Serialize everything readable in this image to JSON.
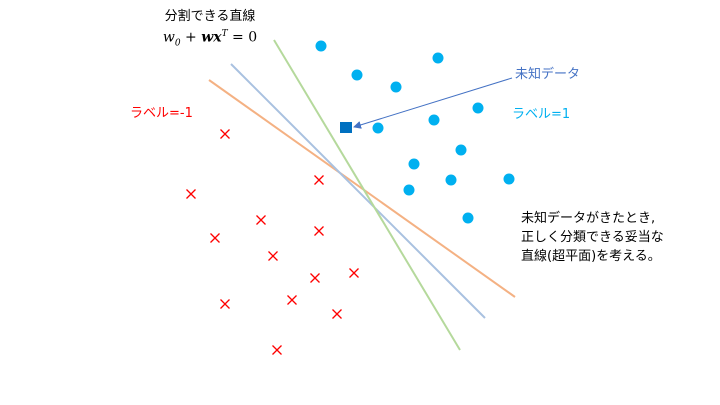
{
  "title": {
    "line1": "分割できる直線",
    "w": "w",
    "w_sub": "0",
    "plus": " + ",
    "wx": "wx",
    "T": "T",
    "eq": " = 0"
  },
  "labels": {
    "negative": "ラベル=-1",
    "positive": "ラベル=1",
    "unknown": "未知データ"
  },
  "note": {
    "line1": "未知データがきたとき,",
    "line2": "正しく分類できる妥当な",
    "line3": "直線(超平面)を考える。"
  },
  "colors": {
    "negative": "#ff0000",
    "positive": "#00b0f0",
    "unknown": "#0070c0",
    "unknown_label": "#4472c4",
    "line_orange": "#f4b183",
    "line_blue": "#a9c1e0",
    "line_green": "#b5d99c"
  },
  "icons": {
    "negative": "cross-marker",
    "positive": "circle-marker",
    "unknown": "square-marker",
    "pointer": "arrow-icon"
  }
}
